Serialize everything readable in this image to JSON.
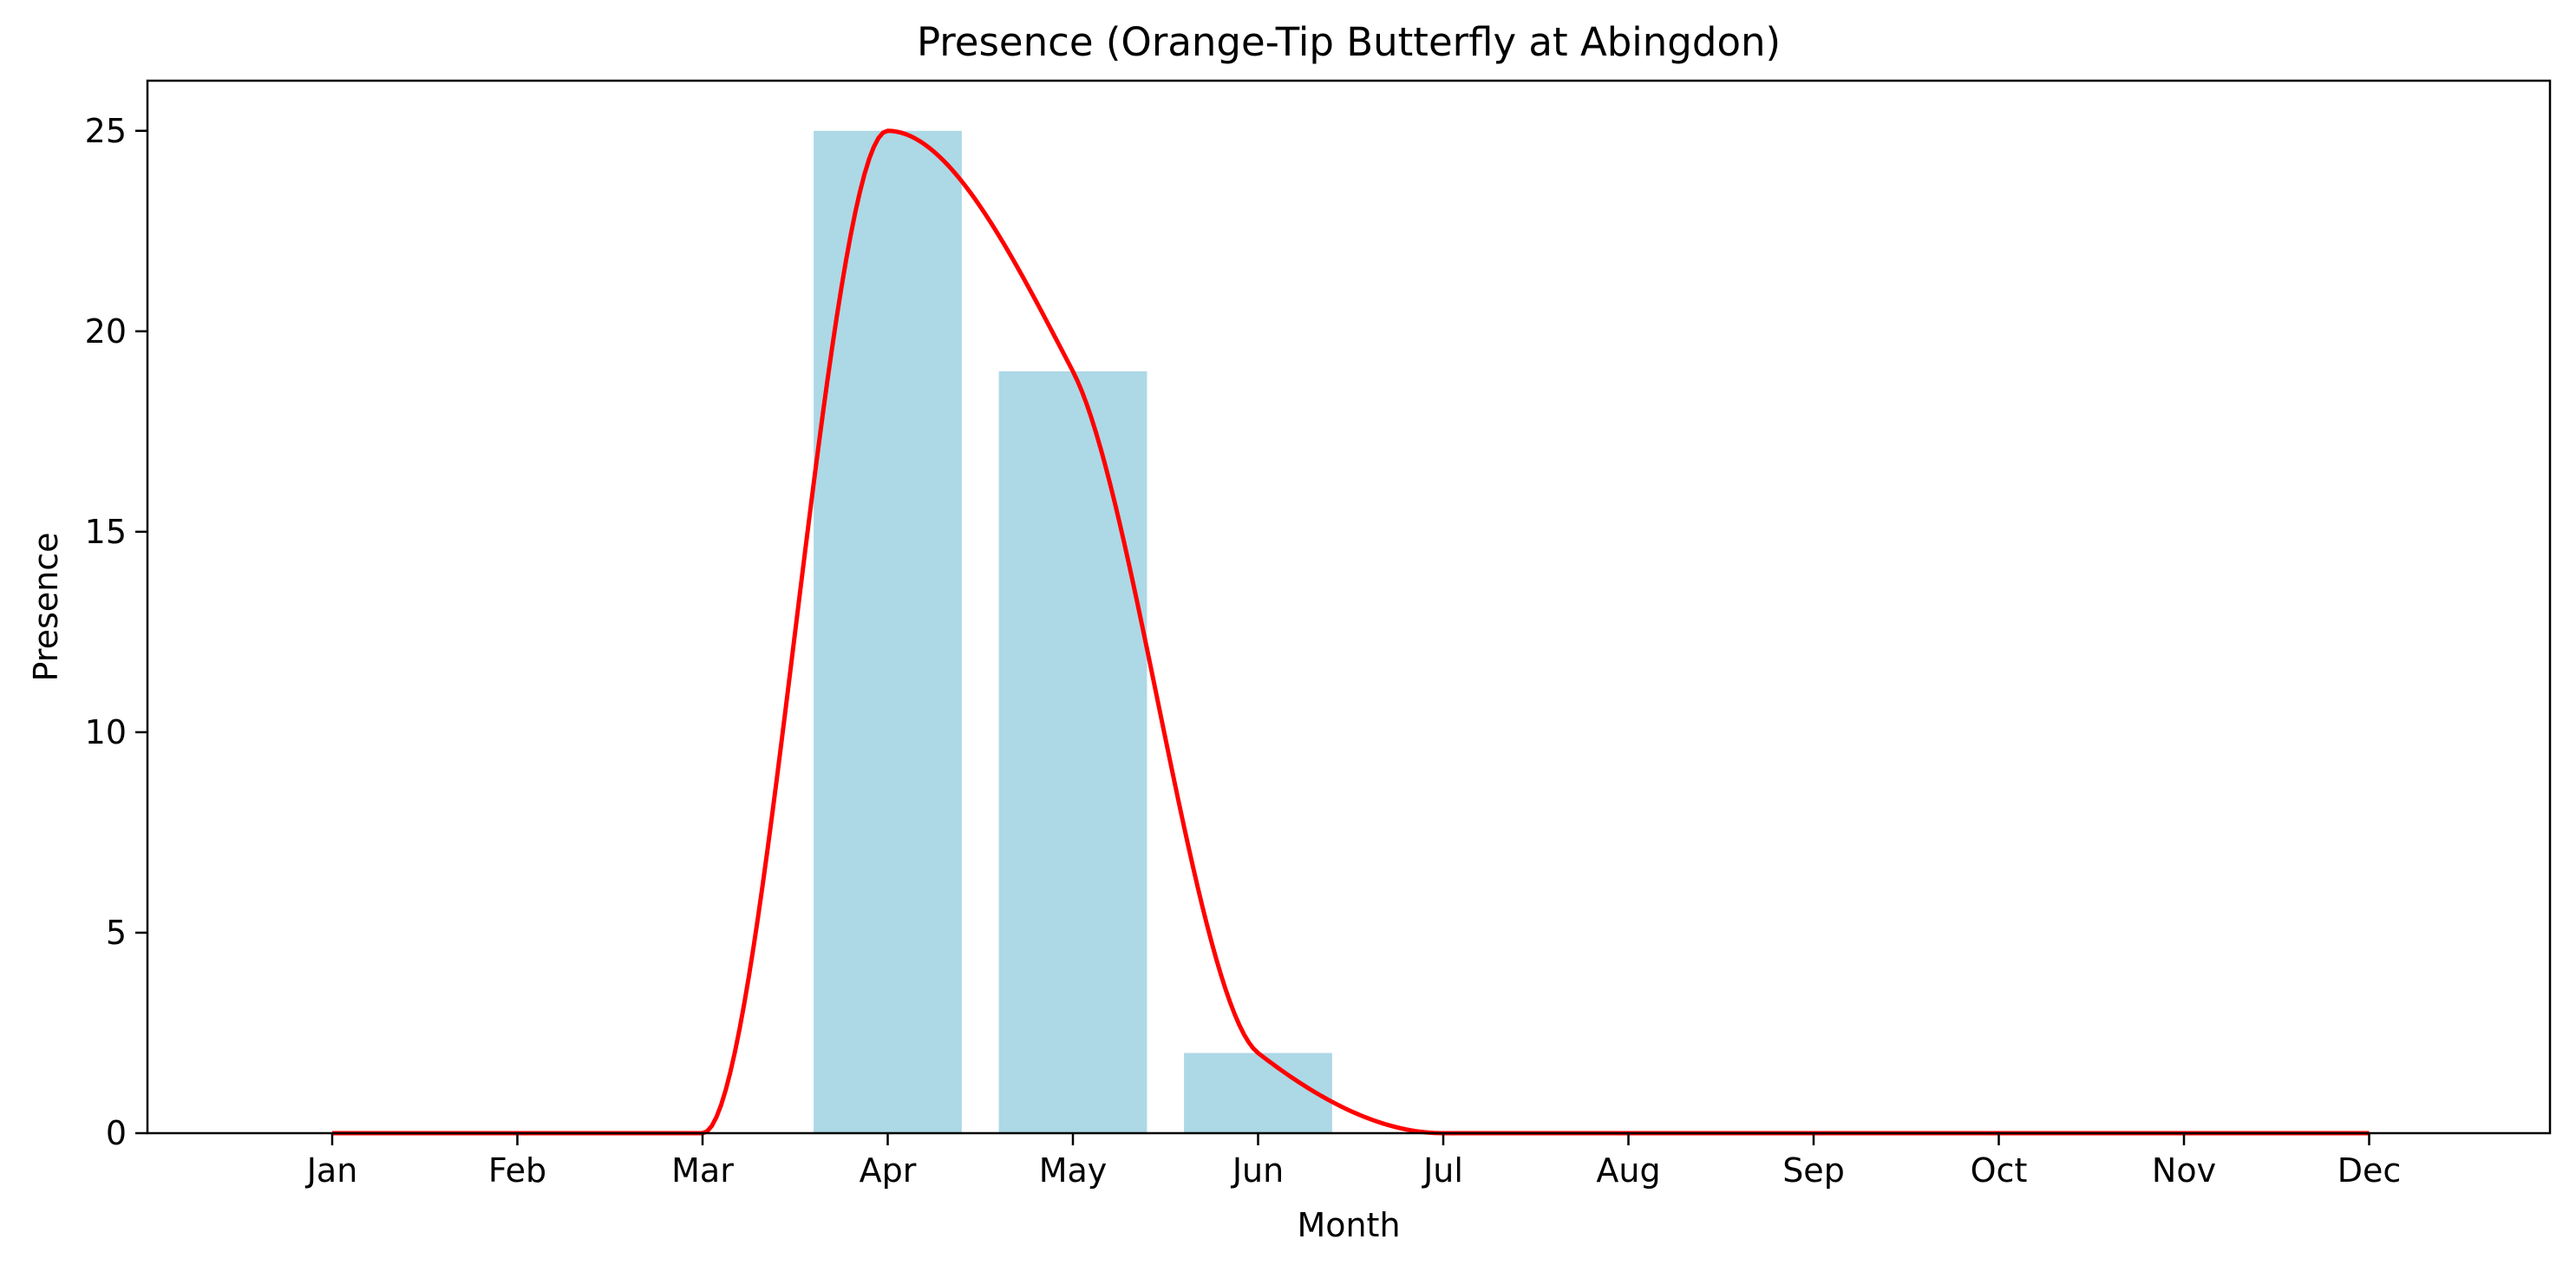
{
  "chart_data": {
    "type": "bar",
    "title": "Presence (Orange-Tip Butterfly at Abingdon)",
    "xlabel": "Month",
    "ylabel": "Presence",
    "categories": [
      "Jan",
      "Feb",
      "Mar",
      "Apr",
      "May",
      "Jun",
      "Jul",
      "Aug",
      "Sep",
      "Oct",
      "Nov",
      "Dec"
    ],
    "series": [
      {
        "values": [
          0,
          0,
          0,
          25,
          19,
          2,
          0,
          0,
          0,
          0,
          0,
          0
        ]
      }
    ],
    "smooth_line": {
      "values": [
        0,
        0,
        0,
        25,
        19,
        2,
        0,
        0,
        0,
        0,
        0,
        0
      ],
      "color": "#ff0000"
    },
    "bar_color": "#add8e6",
    "ylim": [
      0,
      26.25
    ],
    "yticks": [
      0,
      5,
      10,
      15,
      20,
      25
    ],
    "grid": false,
    "legend": "none"
  }
}
